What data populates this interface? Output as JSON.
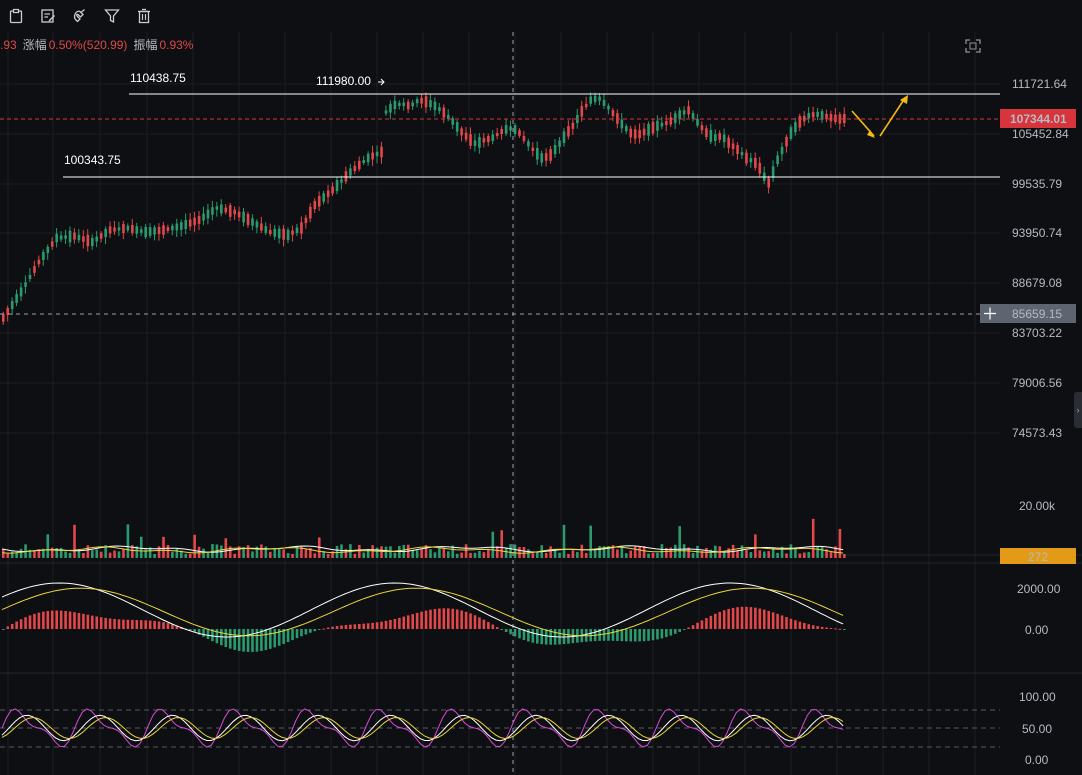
{
  "toolbar": {
    "items": [
      {
        "name": "indicator-tool",
        "icon": "clipboard-icon"
      },
      {
        "name": "note-tool",
        "icon": "edit-note-icon"
      },
      {
        "name": "magnet-tool",
        "icon": "magnet-icon"
      },
      {
        "name": "filter-tool",
        "icon": "filter-icon"
      },
      {
        "name": "delete-tool",
        "icon": "trash-icon"
      }
    ]
  },
  "infobar": {
    "cut_value": ".93",
    "change_label": "涨幅",
    "change_value": "0.50%(520.99)",
    "amplitude_label": "振幅",
    "amplitude_value": "0.93%"
  },
  "price_axis": {
    "labels": [
      "111721.64",
      "105452.84",
      "99535.79",
      "93950.74",
      "88679.08",
      "83703.22",
      "79006.56",
      "74573.43"
    ],
    "current_price": "107344.01",
    "crosshair_price": "85659.15"
  },
  "annotations": {
    "high_level": "110438.75",
    "peak": "111980.00",
    "low_level": "100343.75"
  },
  "volume_axis": {
    "top_label": "20.00k",
    "current_volume": "272"
  },
  "macd_axis": {
    "labels": [
      "2000.00",
      "0.00"
    ]
  },
  "kdj_axis": {
    "labels": [
      "100.00",
      "50.00",
      "0.00"
    ]
  },
  "colors": {
    "background": "#0e0f12",
    "up": "#e2474a",
    "down": "#2a9b6f",
    "current_price_tag": "#d8343b",
    "volume_tag": "#e39a16",
    "crosshair_tag": "#5e6470",
    "arrow": "#f5b816",
    "ma_white": "#ffffff",
    "ma_yellow": "#e8d53a",
    "kdj_pink": "#d64bd6"
  }
}
